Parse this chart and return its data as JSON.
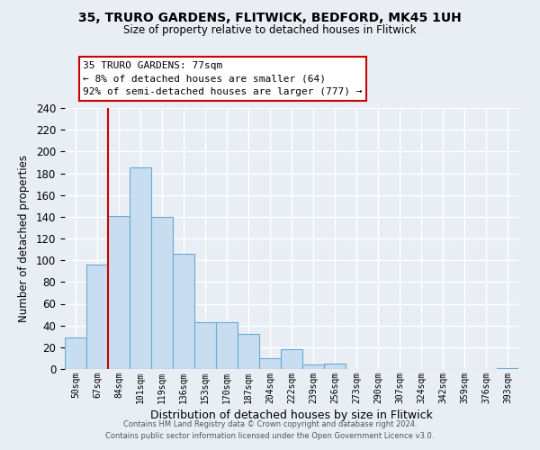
{
  "title_line1": "35, TRURO GARDENS, FLITWICK, BEDFORD, MK45 1UH",
  "title_line2": "Size of property relative to detached houses in Flitwick",
  "xlabel": "Distribution of detached houses by size in Flitwick",
  "ylabel": "Number of detached properties",
  "bar_labels": [
    "50sqm",
    "67sqm",
    "84sqm",
    "101sqm",
    "119sqm",
    "136sqm",
    "153sqm",
    "170sqm",
    "187sqm",
    "204sqm",
    "222sqm",
    "239sqm",
    "256sqm",
    "273sqm",
    "290sqm",
    "307sqm",
    "324sqm",
    "342sqm",
    "359sqm",
    "376sqm",
    "393sqm"
  ],
  "bar_values": [
    29,
    96,
    141,
    185,
    140,
    106,
    43,
    43,
    32,
    10,
    18,
    4,
    5,
    0,
    0,
    0,
    0,
    0,
    0,
    0,
    1
  ],
  "bar_color": "#c8ddf0",
  "bar_edge_color": "#6aaad4",
  "ylim": [
    0,
    240
  ],
  "yticks": [
    0,
    20,
    40,
    60,
    80,
    100,
    120,
    140,
    160,
    180,
    200,
    220,
    240
  ],
  "vline_x_index": 2,
  "vline_color": "#cc0000",
  "annotation_title": "35 TRURO GARDENS: 77sqm",
  "annotation_line1": "← 8% of detached houses are smaller (64)",
  "annotation_line2": "92% of semi-detached houses are larger (777) →",
  "annotation_box_color": "#ffffff",
  "annotation_box_edge_color": "#cc0000",
  "footer_line1": "Contains HM Land Registry data © Crown copyright and database right 2024.",
  "footer_line2": "Contains public sector information licensed under the Open Government Licence v3.0.",
  "background_color": "#e8eef4",
  "grid_color": "#ffffff"
}
